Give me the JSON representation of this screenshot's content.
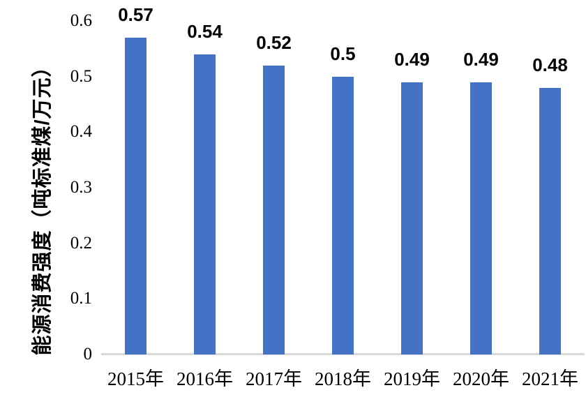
{
  "chart_data": {
    "type": "bar",
    "title": "",
    "xlabel": "",
    "ylabel": "能源消费强度（吨标准煤/万元）",
    "categories": [
      "2015年",
      "2016年",
      "2017年",
      "2018年",
      "2019年",
      "2020年",
      "2021年"
    ],
    "values": [
      0.57,
      0.54,
      0.52,
      0.5,
      0.49,
      0.49,
      0.48
    ],
    "value_labels": [
      "0.57",
      "0.54",
      "0.52",
      "0.5",
      "0.49",
      "0.49",
      "0.48"
    ],
    "ylim": [
      0,
      0.6
    ],
    "yticks": [
      "0",
      "0.1",
      "0.2",
      "0.3",
      "0.4",
      "0.5",
      "0.6"
    ],
    "grid": false,
    "legend": "none",
    "bar_color": "#4472C4",
    "axis_line_color": "#D9D9D9",
    "text_color": "#000000",
    "background": "#FFFFFF"
  }
}
